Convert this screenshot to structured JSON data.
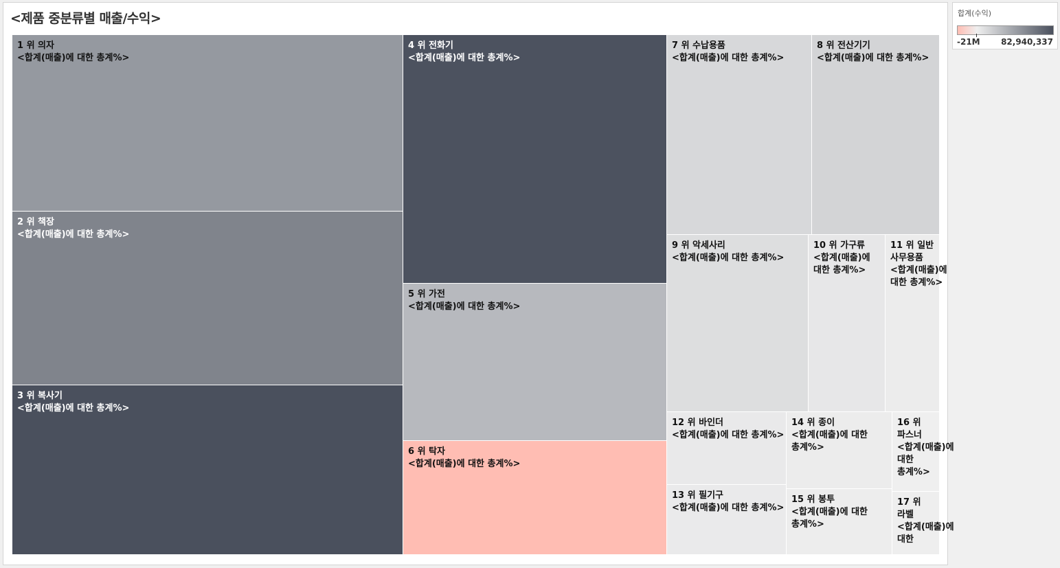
{
  "chart_data": {
    "type": "treemap",
    "title": "<제품 중분류별 매출/수익>",
    "label_suffix": "<합계(매출)에 대한 총계%>",
    "color_legend": {
      "title": "합계(수익)",
      "min_label": "-21M",
      "max_label": "82,940,337",
      "min_value": -21000000,
      "max_value": 82940337,
      "low_color": "#FFBDB3",
      "mid_color": "#EFEFEF",
      "high_color": "#4A505D"
    },
    "items": [
      {
        "rank": "1 위",
        "name": "의자",
        "label": "1 위 의자",
        "sales_share": 16.9,
        "profit": 45000000
      },
      {
        "rank": "2 위",
        "name": "책장",
        "label": "2 위 책장",
        "sales_share": 16.7,
        "profit": 56000000
      },
      {
        "rank": "3 위",
        "name": "복사기",
        "label": "3 위 복사기",
        "sales_share": 16.5,
        "profit": 82940337
      },
      {
        "rank": "4 위",
        "name": "전화기",
        "label": "4 위 전화기",
        "sales_share": 10.0,
        "profit": 82000000
      },
      {
        "rank": "5 위",
        "name": "가전",
        "label": "5 위 가전",
        "sales_share": 6.3,
        "profit": 28000000
      },
      {
        "rank": "6 위",
        "name": "탁자",
        "label": "6 위 탁자",
        "sales_share": 4.6,
        "profit": -21000000
      },
      {
        "rank": "7 위",
        "name": "수납용품",
        "label": "7 위 수납용품",
        "sales_share": 4.4,
        "profit": 12000000
      },
      {
        "rank": "8 위",
        "name": "전산기기",
        "label": "8 위 전산기기",
        "sales_share": 4.3,
        "profit": 14000000
      },
      {
        "rank": "9 위",
        "name": "악세사리",
        "label": "9 위 악세사리",
        "sales_share": 3.8,
        "profit": 9000000
      },
      {
        "rank": "10 위",
        "name": "가구류",
        "label": "10 위 가구류",
        "sales_share": 2.1,
        "profit": 4000000
      },
      {
        "rank": "11 위",
        "name": "일반 사무용품",
        "label": "11 위 일반 사무용품",
        "sales_share": 1.4,
        "profit": 1500000
      },
      {
        "rank": "12 위",
        "name": "바인더",
        "label": "12 위 바인더",
        "sales_share": 1.3,
        "profit": 3000000
      },
      {
        "rank": "13 위",
        "name": "필기구",
        "label": "13 위 필기구",
        "sales_share": 1.2,
        "profit": 2500000
      },
      {
        "rank": "14 위",
        "name": "종이",
        "label": "14 위 종이",
        "sales_share": 1.1,
        "profit": 1500000
      },
      {
        "rank": "15 위",
        "name": "봉투",
        "label": "15 위 봉투",
        "sales_share": 1.0,
        "profit": 1000000
      },
      {
        "rank": "16 위",
        "name": "파스너",
        "label": "16 위 파스너",
        "sales_share": 0.7,
        "profit": 200000
      },
      {
        "rank": "17 위",
        "name": "라벨",
        "label": "17 위 라벨",
        "sales_share": 0.7,
        "profit": 400000
      }
    ]
  }
}
